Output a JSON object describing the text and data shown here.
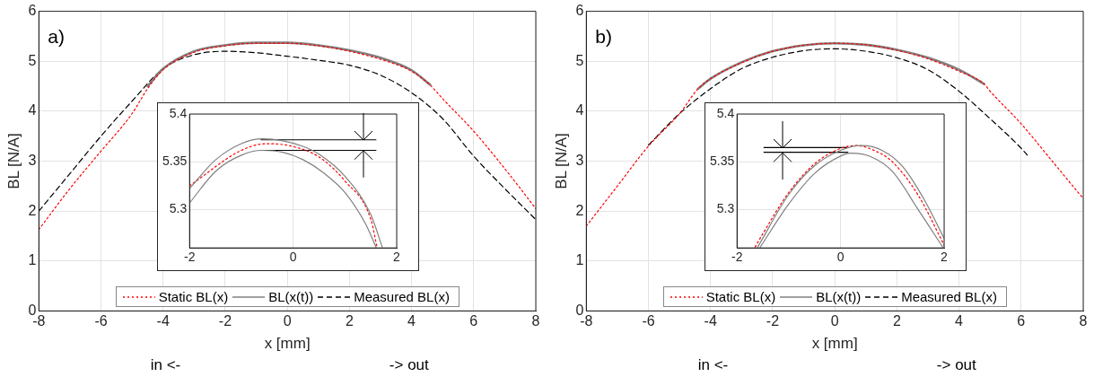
{
  "chart_data": [
    {
      "type": "line",
      "annotations": [
        "a)",
        "in <-",
        "-> out"
      ],
      "xlabel": "x [mm]",
      "ylabel": "BL [N/A]",
      "xlim": [
        -8,
        8
      ],
      "xticks": [
        -8,
        -6,
        -4,
        -2,
        0,
        2,
        4,
        6,
        8
      ],
      "ylim": [
        0,
        6
      ],
      "yticks": [
        0,
        1,
        2,
        3,
        4,
        5,
        6
      ],
      "grid": true,
      "legend": "bottom",
      "series": [
        {
          "name": "Static BL(x)",
          "color": "#ff0000",
          "line_style": "dotted",
          "x": [
            -8,
            -7,
            -6,
            -5,
            -4.5,
            -4,
            -3,
            -2,
            -1,
            0,
            1,
            2,
            3,
            4,
            4.6,
            5,
            6,
            7,
            8
          ],
          "values": [
            1.63,
            2.45,
            3.2,
            3.95,
            4.45,
            4.83,
            5.18,
            5.31,
            5.36,
            5.36,
            5.31,
            5.2,
            5.04,
            4.8,
            4.52,
            4.25,
            3.6,
            2.85,
            2.05
          ]
        },
        {
          "name": "BL(x(t))",
          "color": "#808080",
          "line_style": "solid",
          "x": [
            -4.5,
            -4,
            -3,
            -2,
            -1,
            0,
            1,
            2,
            3,
            4,
            4.6
          ],
          "values": [
            4.5,
            4.85,
            5.2,
            5.32,
            5.37,
            5.37,
            5.32,
            5.22,
            5.07,
            4.82,
            4.53
          ]
        },
        {
          "name": "Measured BL(x)",
          "color": "#000000",
          "line_style": "dashed",
          "x": [
            -8,
            -7,
            -6,
            -5,
            -4,
            -3,
            -2,
            -1,
            0,
            1,
            2,
            3,
            4,
            5,
            6,
            7,
            8
          ],
          "values": [
            2.0,
            2.75,
            3.5,
            4.2,
            4.85,
            5.13,
            5.2,
            5.17,
            5.1,
            5.02,
            4.92,
            4.72,
            4.37,
            3.85,
            3.1,
            2.45,
            1.83
          ]
        }
      ]
    },
    {
      "type": "line",
      "xlim": [
        -2,
        2
      ],
      "xticks": [
        -2,
        0,
        2
      ],
      "ylim": [
        5.26,
        5.4
      ],
      "yticks": [
        5.3,
        5.35,
        5.4
      ],
      "grid": true,
      "series": [
        {
          "color": "#808080",
          "line_style": "solid",
          "x": [
            -2,
            -1.5,
            -1,
            -0.6,
            -0.2,
            0.2,
            0.5,
            1,
            1.5,
            1.72
          ],
          "values": [
            5.322,
            5.352,
            5.369,
            5.374,
            5.372,
            5.366,
            5.358,
            5.335,
            5.295,
            5.261
          ]
        },
        {
          "color": "#808080",
          "line_style": "solid",
          "x": [
            -2,
            -1.5,
            -1,
            -0.6,
            -0.2,
            0.2,
            0.6,
            1,
            1.4,
            1.6
          ],
          "values": [
            5.307,
            5.34,
            5.357,
            5.362,
            5.36,
            5.352,
            5.338,
            5.318,
            5.285,
            5.261
          ]
        },
        {
          "color": "#ff0000",
          "line_style": "dotted",
          "x": [
            -2,
            -1,
            -0.5,
            0,
            0.5,
            1,
            1.5,
            1.62
          ],
          "values": [
            5.325,
            5.362,
            5.369,
            5.366,
            5.355,
            5.33,
            5.29,
            5.261
          ]
        },
        {
          "color": "#000000",
          "line_style": "solid",
          "x": [
            -0.62,
            1.6
          ],
          "values": [
            5.373,
            5.373
          ]
        },
        {
          "color": "#000000",
          "line_style": "solid",
          "x": [
            -0.62,
            1.6
          ],
          "values": [
            5.362,
            5.362
          ]
        }
      ]
    },
    {
      "type": "line",
      "annotations": [
        "b)",
        "in <-",
        "-> out"
      ],
      "xlabel": "x [mm]",
      "ylabel": "BL [N/A]",
      "xlim": [
        -8,
        8
      ],
      "xticks": [
        -8,
        -6,
        -4,
        -2,
        0,
        2,
        4,
        6,
        8
      ],
      "ylim": [
        0,
        6
      ],
      "yticks": [
        0,
        1,
        2,
        3,
        4,
        5,
        6
      ],
      "grid": true,
      "legend": "bottom",
      "series": [
        {
          "name": "Static BL(x)",
          "color": "#ff0000",
          "line_style": "dotted",
          "x": [
            -8,
            -7,
            -6,
            -5,
            -4.4,
            -4,
            -3,
            -2,
            -1,
            0,
            1,
            2,
            3,
            4,
            4.8,
            5,
            6,
            7,
            8
          ],
          "values": [
            1.7,
            2.5,
            3.3,
            3.95,
            4.45,
            4.65,
            4.97,
            5.2,
            5.32,
            5.36,
            5.33,
            5.22,
            5.05,
            4.8,
            4.55,
            4.4,
            3.75,
            3.0,
            2.25
          ]
        },
        {
          "name": "BL(x(t))",
          "color": "#808080",
          "line_style": "solid",
          "x": [
            -4.4,
            -4,
            -3,
            -2,
            -1,
            0,
            1,
            2,
            3,
            4,
            4.8
          ],
          "values": [
            4.45,
            4.65,
            4.98,
            5.2,
            5.32,
            5.36,
            5.33,
            5.23,
            5.07,
            4.83,
            4.55
          ]
        },
        {
          "name": "Measured BL(x)",
          "color": "#000000",
          "line_style": "dashed",
          "x": [
            -6,
            -5,
            -4,
            -3,
            -2,
            -1,
            0,
            1,
            2,
            3,
            4,
            5,
            6,
            6.2
          ],
          "values": [
            3.32,
            3.95,
            4.45,
            4.85,
            5.08,
            5.21,
            5.25,
            5.2,
            5.07,
            4.83,
            4.4,
            3.85,
            3.26,
            3.12
          ]
        }
      ]
    },
    {
      "type": "line",
      "xlim": [
        -2,
        2
      ],
      "xticks": [
        -2,
        0,
        2
      ],
      "ylim": [
        5.26,
        5.4
      ],
      "yticks": [
        5.3,
        5.35,
        5.4
      ],
      "grid": true,
      "series": [
        {
          "color": "#808080",
          "line_style": "solid",
          "x": [
            -1.6,
            -1,
            -0.5,
            0,
            0.4,
            0.8,
            1.2,
            1.6,
            2
          ],
          "values": [
            5.261,
            5.316,
            5.346,
            5.362,
            5.367,
            5.362,
            5.345,
            5.312,
            5.27
          ]
        },
        {
          "color": "#808080",
          "line_style": "solid",
          "x": [
            -1.55,
            -1,
            -0.5,
            0,
            0.2,
            0.6,
            1,
            1.5,
            1.97
          ],
          "values": [
            5.261,
            5.306,
            5.338,
            5.356,
            5.359,
            5.355,
            5.34,
            5.3,
            5.261
          ]
        },
        {
          "color": "#ff0000",
          "line_style": "dotted",
          "x": [
            -1.65,
            -1.5,
            -1,
            -0.5,
            0,
            0.3,
            0.6,
            1,
            1.5,
            2
          ],
          "values": [
            5.261,
            5.275,
            5.318,
            5.348,
            5.364,
            5.367,
            5.363,
            5.35,
            5.315,
            5.263
          ]
        },
        {
          "color": "#000000",
          "line_style": "solid",
          "x": [
            -1.48,
            0.14
          ],
          "values": [
            5.365,
            5.365
          ]
        },
        {
          "color": "#000000",
          "line_style": "solid",
          "x": [
            -1.48,
            0.14
          ],
          "values": [
            5.36,
            5.36
          ]
        }
      ]
    }
  ]
}
